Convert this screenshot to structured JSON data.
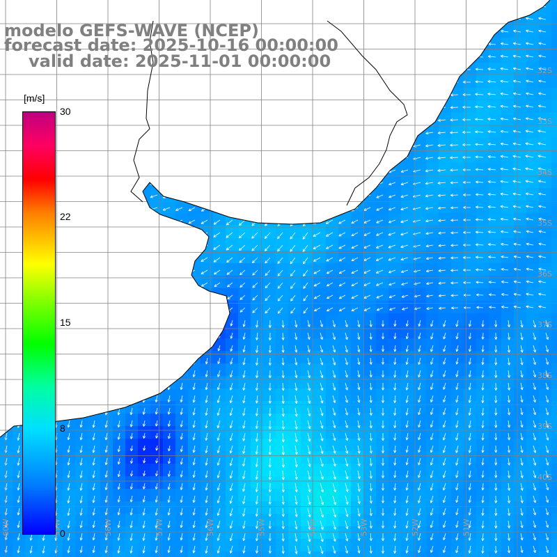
{
  "title": {
    "model": "modelo GEFS-WAVE (NCEP)",
    "forecast": "forecast date: 2025-10-16 00:00:00",
    "valid": "valid date: 2025-11-01 00:00:00"
  },
  "colorbar": {
    "unit": "[m/s]",
    "ticks": [
      "30",
      "22",
      "15",
      "8",
      "0"
    ],
    "tick_values": [
      30,
      22,
      15,
      8,
      0
    ],
    "colors": [
      "#0000ff",
      "#0080ff",
      "#00e0ff",
      "#00ffa0",
      "#00ff00",
      "#80ff00",
      "#ffff00",
      "#ff8000",
      "#ff0000",
      "#ff0060",
      "#c00080"
    ]
  },
  "map": {
    "field": "wind speed",
    "grid_labels_right": [
      "32S",
      "33S",
      "34S",
      "35S",
      "36S",
      "37S",
      "38S",
      "39S",
      "40S"
    ],
    "grid_labels_bottom": [
      "60W",
      "59W",
      "58W",
      "57W",
      "56W",
      "55W",
      "54W",
      "53W",
      "52W",
      "51W"
    ],
    "land_color": "#ffffff",
    "arrow_color": "#ffffff"
  }
}
